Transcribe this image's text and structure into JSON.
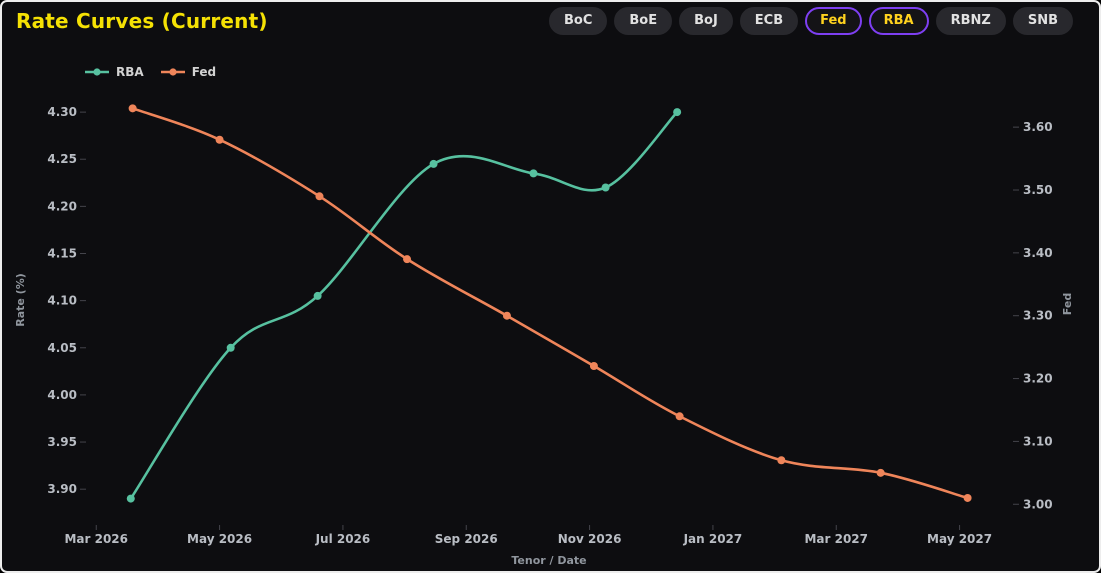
{
  "page": {
    "title": "Rate Curves (Current)"
  },
  "colors": {
    "background": "#0d0d10",
    "panel_border": "#ededed",
    "title": "#f5e104",
    "button_bg": "#28282d",
    "button_text": "#e2e2e2",
    "active_button_border": "#7e3ff2",
    "active_button_text": "#ffd21e",
    "rba_line": "#57c1a0",
    "fed_line": "#ef855a",
    "axis_tick_text": "#b9bdc4",
    "axis_name_text": "#90969e",
    "tick_mark": "#44444b"
  },
  "toolbar": {
    "buttons": [
      {
        "label": "BoC",
        "active": false
      },
      {
        "label": "BoE",
        "active": false
      },
      {
        "label": "BoJ",
        "active": false
      },
      {
        "label": "ECB",
        "active": false
      },
      {
        "label": "Fed",
        "active": true
      },
      {
        "label": "RBA",
        "active": true
      },
      {
        "label": "RBNZ",
        "active": false
      },
      {
        "label": "SNB",
        "active": false
      }
    ]
  },
  "legend": {
    "items": [
      {
        "label": "RBA",
        "color": "#57c1a0"
      },
      {
        "label": "Fed",
        "color": "#ef855a"
      }
    ]
  },
  "chart_data": {
    "type": "line",
    "title": "Rate Curves (Current)",
    "xlabel": "Tenor / Date",
    "ylabel_left": "Rate (%)",
    "ylabel_right": "Fed",
    "grid": false,
    "legend_position": "top-left",
    "x_tick_labels": [
      "Mar 2026",
      "May 2026",
      "Jul 2026",
      "Sep 2026",
      "Nov 2026",
      "Jan 2027",
      "Mar 2027",
      "May 2027"
    ],
    "x_tick_months": [
      0,
      2,
      4,
      6,
      8,
      10,
      12,
      14
    ],
    "xlim_months": [
      -0.15,
      14.85
    ],
    "left_tick_labels": [
      "3.90",
      "3.95",
      "4.00",
      "4.05",
      "4.10",
      "4.15",
      "4.20",
      "4.25",
      "4.30"
    ],
    "right_tick_labels": [
      "3.00",
      "3.10",
      "3.20",
      "3.30",
      "3.40",
      "3.50",
      "3.60"
    ],
    "ylim_left": [
      3.862,
      4.316
    ],
    "ylim_right": [
      2.967,
      3.648
    ],
    "series": [
      {
        "name": "RBA",
        "axis": "left",
        "color": "#57c1a0",
        "smooth": true,
        "x_months": [
          0.56,
          2.18,
          3.59,
          5.47,
          7.09,
          8.26,
          9.42
        ],
        "values": [
          3.89,
          4.05,
          4.105,
          4.245,
          4.235,
          4.22,
          4.3
        ]
      },
      {
        "name": "Fed",
        "axis": "right",
        "color": "#ef855a",
        "smooth": true,
        "x_months": [
          0.59,
          2.0,
          3.62,
          5.04,
          6.66,
          8.07,
          9.46,
          11.11,
          12.72,
          14.13
        ],
        "values": [
          3.63,
          3.58,
          3.49,
          3.39,
          3.3,
          3.22,
          3.14,
          3.07,
          3.05,
          3.01
        ]
      }
    ]
  }
}
